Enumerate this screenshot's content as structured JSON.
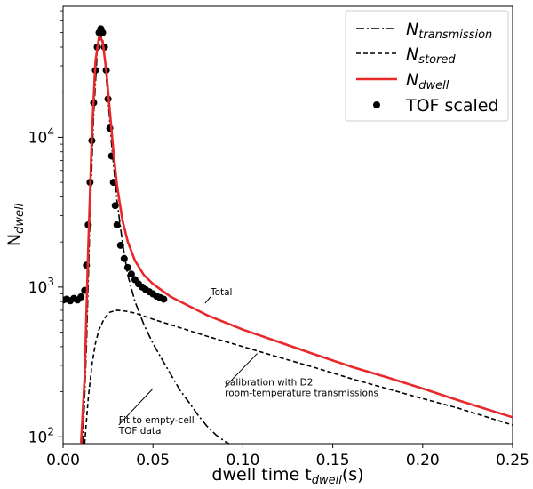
{
  "chart_data": {
    "type": "line",
    "xlabel": {
      "main": "dwell time t",
      "sub": "dwell",
      "tail": "(s)"
    },
    "ylabel": {
      "main": "N",
      "sub": "dwell"
    },
    "x_ticks": [
      "0.00",
      "0.05",
      "0.10",
      "0.15",
      "0.20",
      "0.25"
    ],
    "y_ticks": [
      {
        "value": 100,
        "base": "10",
        "exp": "2"
      },
      {
        "value": 1000,
        "base": "10",
        "exp": "3"
      },
      {
        "value": 10000,
        "base": "10",
        "exp": "4"
      }
    ],
    "xlim": [
      0.0,
      0.25
    ],
    "ylim": [
      90,
      75000
    ],
    "y_scale": "log",
    "grid": false,
    "legend_position": "top-right",
    "series": [
      {
        "key": "transmission",
        "name_main": "N",
        "name_sub": "transmission",
        "style": "dashdot",
        "color": "#000000",
        "x": [
          0.011,
          0.013,
          0.015,
          0.017,
          0.019,
          0.021,
          0.023,
          0.025,
          0.027,
          0.03,
          0.033,
          0.036,
          0.04,
          0.045,
          0.05,
          0.055,
          0.06,
          0.065,
          0.07,
          0.075,
          0.08,
          0.085,
          0.09,
          0.093
        ],
        "y": [
          90,
          400,
          3000,
          14000,
          38000,
          48000,
          35000,
          18000,
          9000,
          3800,
          2000,
          1200,
          800,
          560,
          420,
          330,
          260,
          205,
          170,
          140,
          118,
          103,
          93,
          89
        ]
      },
      {
        "key": "stored",
        "name_main": "N",
        "name_sub": "stored",
        "style": "dashed",
        "color": "#000000",
        "x": [
          0.012,
          0.014,
          0.016,
          0.018,
          0.02,
          0.023,
          0.026,
          0.03,
          0.035,
          0.04,
          0.05,
          0.06,
          0.08,
          0.1,
          0.12,
          0.14,
          0.16,
          0.18,
          0.2,
          0.22,
          0.25
        ],
        "y": [
          90,
          180,
          300,
          420,
          520,
          620,
          680,
          700,
          690,
          670,
          610,
          560,
          470,
          400,
          340,
          290,
          245,
          210,
          180,
          155,
          120
        ]
      },
      {
        "key": "dwell",
        "name_main": "N",
        "name_sub": "dwell",
        "style": "solid",
        "color": "#e8282b",
        "x": [
          0.01,
          0.012,
          0.014,
          0.016,
          0.018,
          0.02,
          0.022,
          0.024,
          0.026,
          0.028,
          0.03,
          0.033,
          0.036,
          0.04,
          0.045,
          0.05,
          0.06,
          0.08,
          0.1,
          0.12,
          0.14,
          0.16,
          0.18,
          0.2,
          0.22,
          0.25
        ],
        "y": [
          90,
          250,
          1800,
          10000,
          32000,
          47000,
          44000,
          28000,
          15000,
          8000,
          4800,
          2800,
          2000,
          1500,
          1200,
          1050,
          860,
          650,
          520,
          430,
          355,
          295,
          250,
          210,
          175,
          135
        ]
      },
      {
        "key": "tof",
        "name_main": "TOF scaled",
        "style": "points",
        "color": "#000000",
        "x": [
          0.0,
          0.002,
          0.004,
          0.006,
          0.008,
          0.01,
          0.012,
          0.013,
          0.014,
          0.015,
          0.016,
          0.017,
          0.018,
          0.019,
          0.02,
          0.021,
          0.022,
          0.023,
          0.024,
          0.025,
          0.026,
          0.027,
          0.028,
          0.029,
          0.03,
          0.032,
          0.034,
          0.036,
          0.038,
          0.04,
          0.042,
          0.044,
          0.046,
          0.048,
          0.05,
          0.052,
          0.054,
          0.056
        ],
        "y": [
          820,
          830,
          810,
          840,
          820,
          860,
          950,
          1400,
          2600,
          5000,
          9500,
          17000,
          28000,
          40000,
          50000,
          53000,
          50000,
          40000,
          28000,
          18000,
          11500,
          7500,
          5000,
          3500,
          2600,
          1900,
          1550,
          1350,
          1220,
          1120,
          1050,
          1000,
          960,
          930,
          900,
          870,
          850,
          830
        ]
      }
    ],
    "annotations": [
      {
        "lines": [
          "Total"
        ],
        "x": 0.082,
        "y": 860,
        "arrow_to": [
          0.079,
          780
        ]
      },
      {
        "lines": [
          "calibration with D2",
          "room-temperature transmissions"
        ],
        "x": 0.09,
        "y": 215,
        "arrow_to": [
          0.108,
          360
        ]
      },
      {
        "lines": [
          "Fit to empty-cell",
          "TOF data"
        ],
        "x": 0.031,
        "y": 120,
        "arrow_to": [
          0.05,
          210
        ]
      }
    ]
  }
}
